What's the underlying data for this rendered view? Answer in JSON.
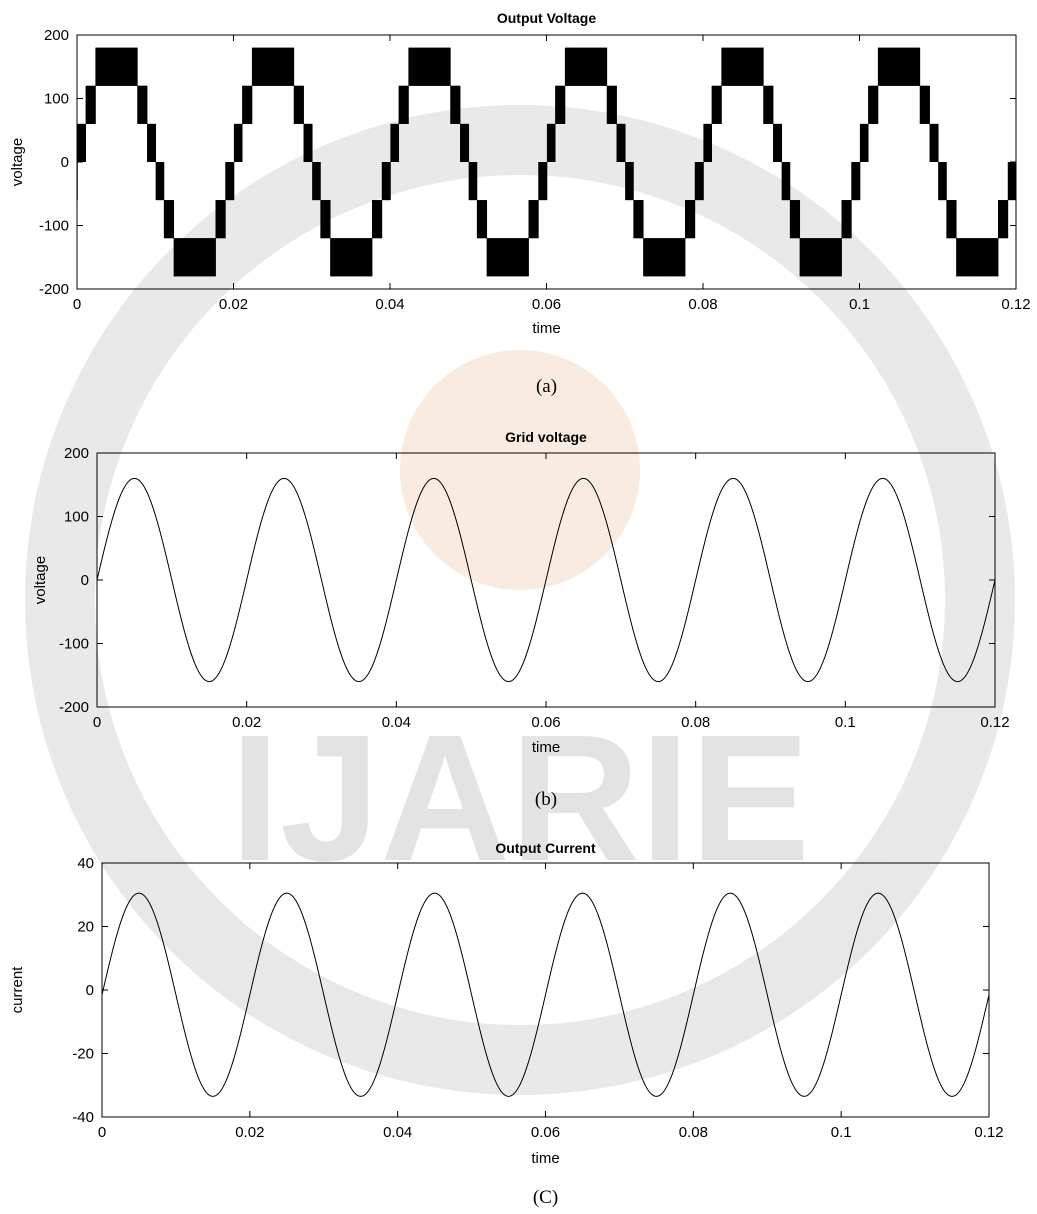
{
  "chart_data": [
    {
      "type": "line",
      "title": "Output Voltage",
      "xlabel": "time",
      "ylabel": "voltage",
      "xlim": [
        0,
        0.12
      ],
      "ylim": [
        -200,
        200
      ],
      "xticks": [
        "0",
        "0.02",
        "0.04",
        "0.06",
        "0.08",
        "0.1",
        "0.12"
      ],
      "yticks": [
        "-200",
        "-100",
        "0",
        "100",
        "200"
      ],
      "caption": "(a)",
      "waveform": "multilevel staircase (switching between adjacent levels)",
      "frequency_hz": 50,
      "levels": [
        -180,
        -120,
        -60,
        0,
        60,
        120,
        180
      ],
      "series": [
        {
          "values_desc": "7-level staircase approximation of sine, peak 180"
        }
      ]
    },
    {
      "type": "line",
      "title": "Grid  voltage",
      "xlabel": "time",
      "ylabel": "voltage",
      "xlim": [
        0,
        0.12
      ],
      "ylim": [
        -200,
        200
      ],
      "xticks": [
        "0",
        "0.02",
        "0.04",
        "0.06",
        "0.08",
        "0.1",
        "0.12"
      ],
      "yticks": [
        "-200",
        "-100",
        "0",
        "100",
        "200"
      ],
      "caption": "(b)",
      "waveform": "sine",
      "frequency_hz": 50,
      "amplitude": 160,
      "offset": 0
    },
    {
      "type": "line",
      "title": "Output Current",
      "xlabel": "time",
      "ylabel": "current",
      "xlim": [
        0,
        0.12
      ],
      "ylim": [
        -40,
        40
      ],
      "xticks": [
        "0",
        "0.02",
        "0.04",
        "0.06",
        "0.08",
        "0.1",
        "0.12"
      ],
      "yticks": [
        "-40",
        "-20",
        "0",
        "20",
        "40"
      ],
      "caption": "(C)",
      "waveform": "sine",
      "frequency_hz": 50,
      "amplitude": 32,
      "offset": -1.5
    }
  ],
  "watermark": "IJARIE"
}
